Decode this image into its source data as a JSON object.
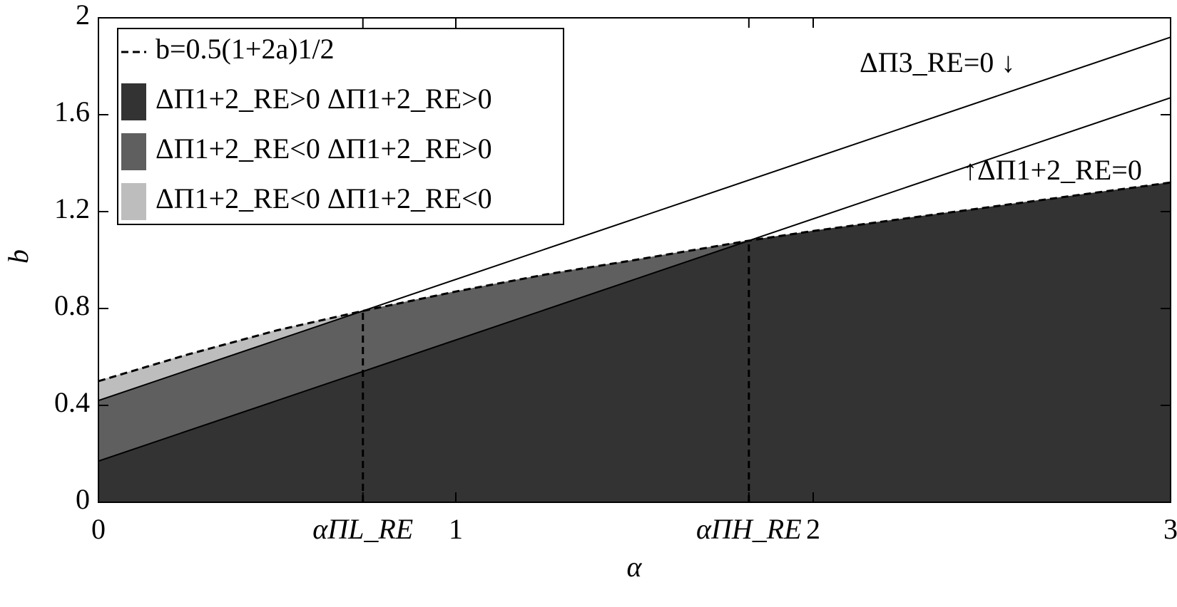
{
  "chart_data": {
    "type": "region",
    "xlabel": "α",
    "ylabel": "b",
    "xlim": [
      0,
      3
    ],
    "ylim": [
      0,
      2
    ],
    "xticks": [
      0,
      {
        "value": 0.74,
        "label": "αΠL_RE"
      },
      1,
      {
        "value": 1.82,
        "label": "αΠH_RE"
      },
      2,
      3
    ],
    "yticks": [
      0,
      0.4,
      0.8,
      1.2,
      1.6,
      2
    ],
    "grid": false,
    "legend": "upper left",
    "series": [
      {
        "name": "b=0.5(1+2a)1/2",
        "color": "#000000",
        "dashed": true,
        "x": [
          0,
          0.25,
          0.5,
          0.74,
          1,
          1.25,
          1.5,
          1.82,
          2,
          2.25,
          2.5,
          2.75,
          3
        ],
        "values": [
          0.5,
          0.61,
          0.71,
          0.79,
          0.87,
          0.94,
          1.0,
          1.08,
          1.12,
          1.17,
          1.22,
          1.27,
          1.32
        ]
      },
      {
        "color": "#000000",
        "dashed": false,
        "x": [
          0,
          0.74,
          1.82,
          3
        ],
        "values": [
          0.42,
          0.79,
          1.33,
          1.92
        ]
      },
      {
        "color": "#000000",
        "dashed": false,
        "x": [
          0,
          0.74,
          1.82,
          3
        ],
        "values": [
          0.17,
          0.54,
          1.08,
          1.67
        ]
      },
      {
        "color": "#000000",
        "dashed": true,
        "x": [
          0.74,
          0.74
        ],
        "values": [
          0,
          0.79
        ]
      },
      {
        "color": "#000000",
        "dashed": true,
        "x": [
          1.82,
          1.82
        ],
        "values": [
          0,
          1.08
        ]
      }
    ],
    "regions": [
      {
        "name": "ΔΠ1+2_RE>0 ΔΠ1+2_RE>0",
        "color": "#333333"
      },
      {
        "name": "ΔΠ1+2_RE<0 ΔΠ1+2_RE>0",
        "color": "#5f5f5f"
      },
      {
        "name": "ΔΠ1+2_RE<0 ΔΠ1+2_RE<0",
        "color": "#bdbdbd"
      }
    ],
    "annotations": [
      "ΔΠ3_RE=0 ↓",
      "↑ΔΠ1+2_RE=0"
    ]
  }
}
